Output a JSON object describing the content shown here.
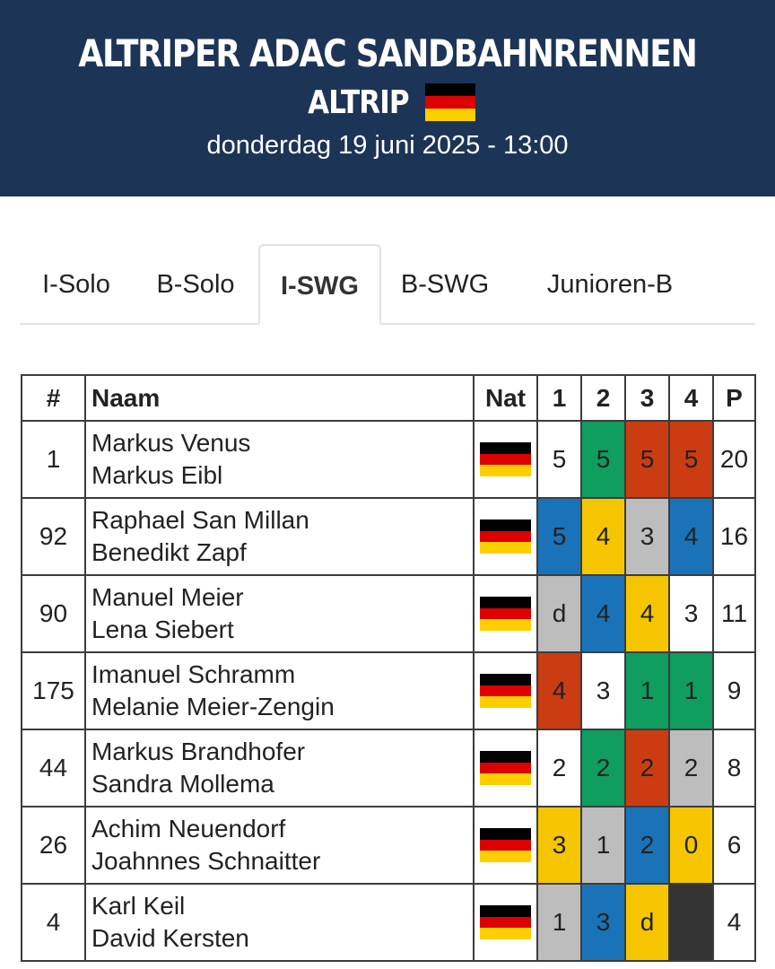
{
  "header": {
    "title": "ALTRIPER ADAC SANDBAHNRENNEN",
    "location": "ALTRIP",
    "flag_icon": "germany-flag-icon",
    "date": "donderdag 19 juni 2025 - 13:00"
  },
  "tabs": [
    {
      "label": "I-Solo",
      "active": false
    },
    {
      "label": "B-Solo",
      "active": false
    },
    {
      "label": "I-SWG",
      "active": true
    },
    {
      "label": "B-SWG",
      "active": false
    },
    {
      "label": "Junioren-B",
      "active": false
    }
  ],
  "colors": {
    "header_bg": "#1c3557",
    "red": "#cc3c12",
    "blue": "#1a73b8",
    "green": "#0f9d60",
    "yellow": "#f5c500",
    "grey": "#bdbdbd",
    "dark": "#333333"
  },
  "table": {
    "headers": {
      "number": "#",
      "name": "Naam",
      "nat": "Nat",
      "h1": "1",
      "h2": "2",
      "h3": "3",
      "h4": "4",
      "points": "P"
    },
    "rows": [
      {
        "number": "1",
        "rider": "Markus Venus",
        "passenger": "Markus Eibl",
        "nat": "germany-flag-icon",
        "heats": [
          {
            "v": "5",
            "c": "white"
          },
          {
            "v": "5",
            "c": "green"
          },
          {
            "v": "5",
            "c": "red"
          },
          {
            "v": "5",
            "c": "red"
          }
        ],
        "points": "20"
      },
      {
        "number": "92",
        "rider": "Raphael San Millan",
        "passenger": "Benedikt Zapf",
        "nat": "germany-flag-icon",
        "heats": [
          {
            "v": "5",
            "c": "blue"
          },
          {
            "v": "4",
            "c": "yellow"
          },
          {
            "v": "3",
            "c": "grey"
          },
          {
            "v": "4",
            "c": "blue"
          }
        ],
        "points": "16"
      },
      {
        "number": "90",
        "rider": "Manuel Meier",
        "passenger": "Lena Siebert",
        "nat": "germany-flag-icon",
        "heats": [
          {
            "v": "d",
            "c": "grey"
          },
          {
            "v": "4",
            "c": "blue"
          },
          {
            "v": "4",
            "c": "yellow"
          },
          {
            "v": "3",
            "c": "white"
          }
        ],
        "points": "11"
      },
      {
        "number": "175",
        "rider": "Imanuel Schramm",
        "passenger": "Melanie Meier-Zengin",
        "nat": "germany-flag-icon",
        "heats": [
          {
            "v": "4",
            "c": "red"
          },
          {
            "v": "3",
            "c": "white"
          },
          {
            "v": "1",
            "c": "green"
          },
          {
            "v": "1",
            "c": "green"
          }
        ],
        "points": "9"
      },
      {
        "number": "44",
        "rider": "Markus Brandhofer",
        "passenger": "Sandra Mollema",
        "nat": "germany-flag-icon",
        "heats": [
          {
            "v": "2",
            "c": "white"
          },
          {
            "v": "2",
            "c": "green"
          },
          {
            "v": "2",
            "c": "red"
          },
          {
            "v": "2",
            "c": "grey"
          }
        ],
        "points": "8"
      },
      {
        "number": "26",
        "rider": "Achim Neuendorf",
        "passenger": "Joahnnes Schnaitter",
        "nat": "germany-flag-icon",
        "heats": [
          {
            "v": "3",
            "c": "yellow"
          },
          {
            "v": "1",
            "c": "grey"
          },
          {
            "v": "2",
            "c": "blue"
          },
          {
            "v": "0",
            "c": "yellow"
          }
        ],
        "points": "6"
      },
      {
        "number": "4",
        "rider": "Karl Keil",
        "passenger": "David Kersten",
        "nat": "germany-flag-icon",
        "heats": [
          {
            "v": "1",
            "c": "grey"
          },
          {
            "v": "3",
            "c": "blue"
          },
          {
            "v": "d",
            "c": "yellow"
          },
          {
            "v": "",
            "c": "dark"
          }
        ],
        "points": "4"
      }
    ]
  }
}
